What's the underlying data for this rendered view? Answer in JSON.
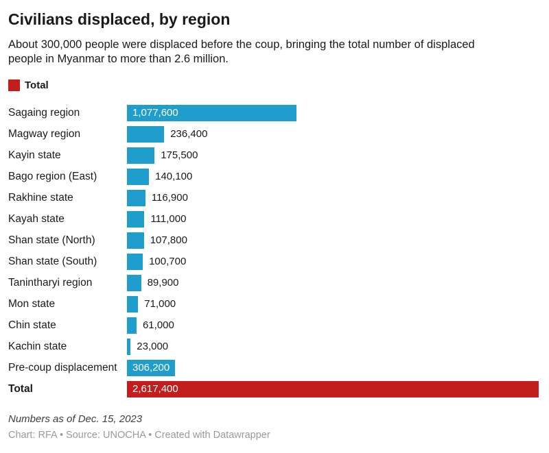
{
  "chart_data": {
    "type": "bar",
    "orientation": "horizontal",
    "title": "Civilians displaced, by region",
    "subtitle_lines": [
      "About 300,000 people were displaced before the coup, bringing the total number of displaced",
      "people in Myanmar to more than 2.6 million."
    ],
    "legend": {
      "label": "Total",
      "color": "#c41d1d"
    },
    "colors": {
      "bar": "#1f9ecd",
      "total_bar": "#c41d1d",
      "inside_label": "#ffffff",
      "outside_label": "#1a1a1a"
    },
    "x_max": 2617400,
    "categories": [
      "Sagaing region",
      "Magway region",
      "Kayin state",
      "Bago region (East)",
      "Rakhine state",
      "Kayah state",
      "Shan state (North)",
      "Shan state (South)",
      "Tanintharyi region",
      "Mon state",
      "Chin state",
      "Kachin state",
      "Pre-coup displacement",
      "Total"
    ],
    "values": [
      1077600,
      236400,
      175500,
      140100,
      116900,
      111000,
      107800,
      100700,
      89900,
      71000,
      61000,
      23000,
      306200,
      2617400
    ],
    "rows": [
      {
        "label": "Sagaing region",
        "value": 1077600,
        "value_display": "1,077,600",
        "value_label_position": "inside",
        "is_total": false
      },
      {
        "label": "Magway region",
        "value": 236400,
        "value_display": "236,400",
        "value_label_position": "outside",
        "is_total": false
      },
      {
        "label": "Kayin state",
        "value": 175500,
        "value_display": "175,500",
        "value_label_position": "outside",
        "is_total": false
      },
      {
        "label": "Bago region (East)",
        "value": 140100,
        "value_display": "140,100",
        "value_label_position": "outside",
        "is_total": false
      },
      {
        "label": "Rakhine state",
        "value": 116900,
        "value_display": "116,900",
        "value_label_position": "outside",
        "is_total": false
      },
      {
        "label": "Kayah state",
        "value": 111000,
        "value_display": "111,000",
        "value_label_position": "outside",
        "is_total": false
      },
      {
        "label": "Shan state (North)",
        "value": 107800,
        "value_display": "107,800",
        "value_label_position": "outside",
        "is_total": false
      },
      {
        "label": "Shan state (South)",
        "value": 100700,
        "value_display": "100,700",
        "value_label_position": "outside",
        "is_total": false
      },
      {
        "label": "Tanintharyi region",
        "value": 89900,
        "value_display": "89,900",
        "value_label_position": "outside",
        "is_total": false
      },
      {
        "label": "Mon state",
        "value": 71000,
        "value_display": "71,000",
        "value_label_position": "outside",
        "is_total": false
      },
      {
        "label": "Chin state",
        "value": 61000,
        "value_display": "61,000",
        "value_label_position": "outside",
        "is_total": false
      },
      {
        "label": "Kachin state",
        "value": 23000,
        "value_display": "23,000",
        "value_label_position": "outside",
        "is_total": false
      },
      {
        "label": "Pre-coup displacement",
        "value": 306200,
        "value_display": "306,200",
        "value_label_position": "inside",
        "is_total": false
      },
      {
        "label": "Total",
        "value": 2617400,
        "value_display": "2,617,400",
        "value_label_position": "inside",
        "is_total": true
      }
    ],
    "note": "Numbers as of Dec. 15, 2023",
    "byline": "Chart: RFA • Source: UNOCHA • Created with Datawrapper"
  }
}
